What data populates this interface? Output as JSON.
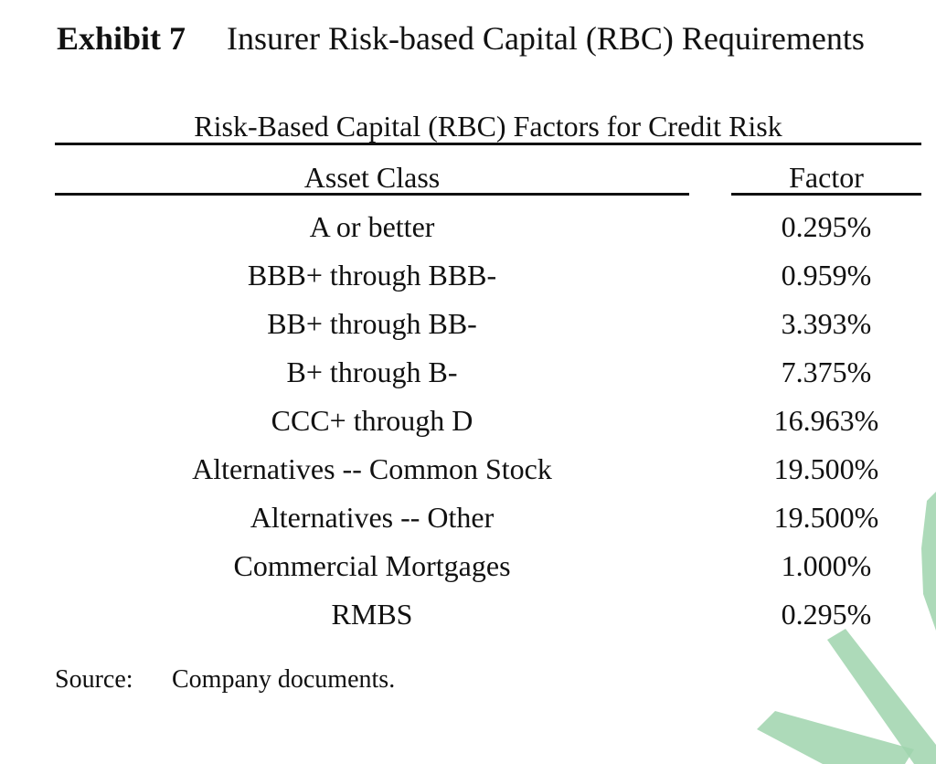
{
  "exhibit": {
    "number": "Exhibit 7",
    "title": "Insurer Risk-based Capital (RBC) Requirements"
  },
  "table": {
    "title": "Risk-Based Capital (RBC) Factors for Credit Risk",
    "headers": {
      "asset_class": "Asset Class",
      "factor": "Factor"
    },
    "rows": [
      {
        "asset_class": "A or better",
        "factor": "0.295%"
      },
      {
        "asset_class": "BBB+ through BBB-",
        "factor": "0.959%"
      },
      {
        "asset_class": "BB+ through BB-",
        "factor": "3.393%"
      },
      {
        "asset_class": "B+ through B-",
        "factor": "7.375%"
      },
      {
        "asset_class": "CCC+ through D",
        "factor": "16.963%"
      },
      {
        "asset_class": "Alternatives -- Common Stock",
        "factor": "19.500%"
      },
      {
        "asset_class": "Alternatives -- Other",
        "factor": "19.500%"
      },
      {
        "asset_class": "Commercial Mortgages",
        "factor": "1.000%"
      },
      {
        "asset_class": "RMBS",
        "factor": "0.295%"
      }
    ]
  },
  "source": {
    "label": "Source:",
    "text": "Company documents."
  },
  "colors": {
    "text": "#111111",
    "watermark": "#9fd3ad"
  }
}
